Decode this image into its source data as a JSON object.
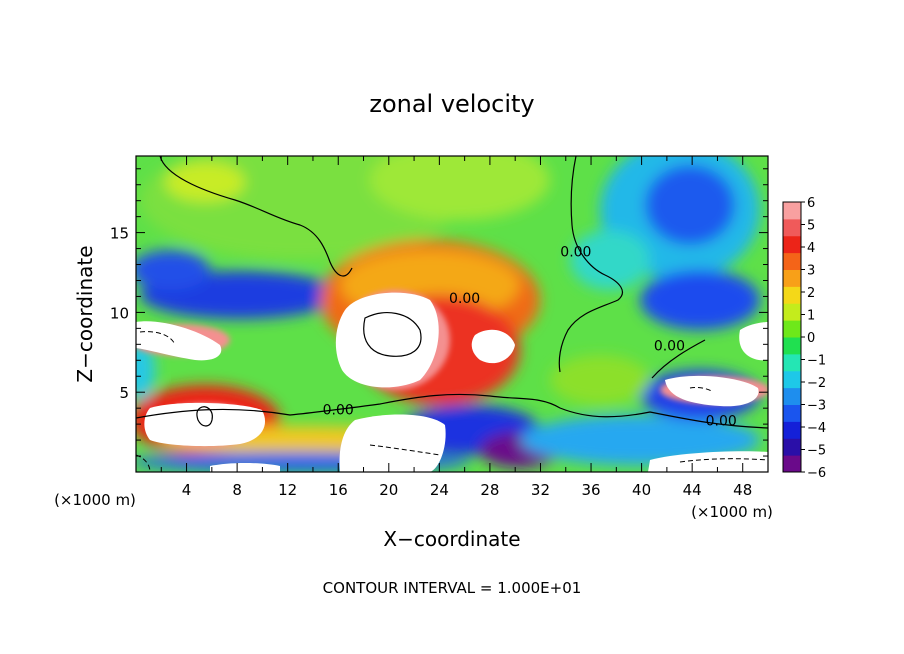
{
  "chart_data": {
    "type": "heatmap",
    "title": "zonal velocity",
    "xlabel": "X−coordinate",
    "ylabel": "Z−coordinate",
    "x_unit_left": "(×1000 m)",
    "x_unit_right": "(×1000 m)",
    "footer": "CONTOUR INTERVAL = 1.000E+01",
    "xlim": [
      0,
      50
    ],
    "ylim": [
      0,
      19.8
    ],
    "x_ticks": [
      4,
      8,
      12,
      16,
      20,
      24,
      28,
      32,
      36,
      40,
      44,
      48
    ],
    "y_ticks": [
      5,
      10,
      15
    ],
    "colorbar": {
      "min": -6,
      "max": 6,
      "tick_labels": [
        "6",
        "5",
        "4",
        "3",
        "2",
        "1",
        "0",
        "−1",
        "−2",
        "−3",
        "−4",
        "−5",
        "−6"
      ],
      "colors": [
        "#6a0a8a",
        "#2a0fa8",
        "#1420d8",
        "#1a55ee",
        "#1e8eee",
        "#1ec8e8",
        "#24e6b4",
        "#20e050",
        "#6ee81a",
        "#c4ec1c",
        "#f4d818",
        "#f8a018",
        "#f46418",
        "#ec2418",
        "#f05a5a",
        "#f8a0a0"
      ]
    },
    "contour_labels": [
      {
        "text": "0.00",
        "x": 26,
        "y": 10.6
      },
      {
        "text": "0.00",
        "x": 16,
        "y": 3.6
      },
      {
        "text": "0.00",
        "x": 34.8,
        "y": 13.5
      },
      {
        "text": "0.00",
        "x": 42.2,
        "y": 7.6
      },
      {
        "text": "0.00",
        "x": 46.3,
        "y": 2.9
      }
    ]
  }
}
